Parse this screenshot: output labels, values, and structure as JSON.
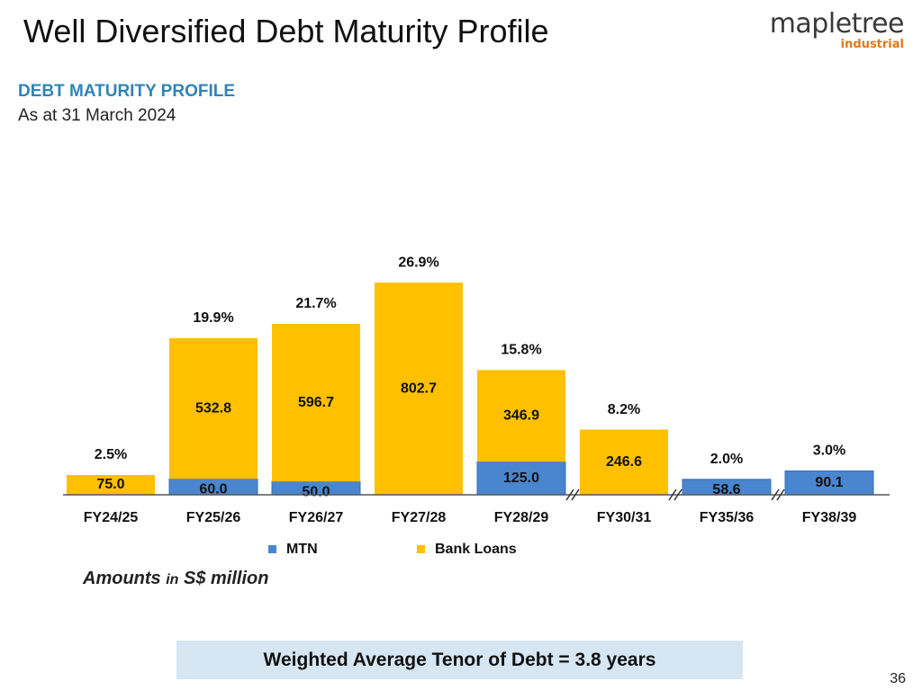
{
  "slide": {
    "title": "Well Diversified Debt Maturity Profile",
    "heading": "DEBT MATURITY PROFILE",
    "subheading": "As at 31 March 2024",
    "amounts_prefix": "Amounts ",
    "amounts_in": "in",
    "amounts_unit": " S$ million",
    "tenor": "Weighted Average Tenor of Debt = 3.8 years",
    "page_number": "36"
  },
  "logo": {
    "main": "mapletree",
    "sub": "industrial"
  },
  "colors": {
    "mtn": "#4a86cf",
    "bank_loans": "#ffc000",
    "heading": "#2f84b8",
    "tenor_box": "#d6e6f3"
  },
  "chart_data": {
    "type": "bar",
    "stacked": true,
    "categories": [
      "FY24/25",
      "FY25/26",
      "FY26/27",
      "FY27/28",
      "FY28/29",
      "FY30/31",
      "FY35/36",
      "FY38/39"
    ],
    "series": [
      {
        "name": "MTN",
        "color": "#4a86cf",
        "values": [
          0,
          60.0,
          50.0,
          0,
          125.0,
          0,
          58.6,
          90.1
        ],
        "labels": [
          "",
          "60.0",
          "50.0",
          "",
          "125.0",
          "",
          "58.6",
          "90.1"
        ]
      },
      {
        "name": "Bank Loans",
        "color": "#ffc000",
        "values": [
          75.0,
          532.8,
          596.7,
          802.7,
          346.9,
          246.6,
          0,
          0
        ],
        "labels": [
          "75.0",
          "532.8",
          "596.7",
          "802.7",
          "346.9",
          "246.6",
          "",
          ""
        ]
      }
    ],
    "percentages": [
      "2.5%",
      "19.9%",
      "21.7%",
      "26.9%",
      "15.8%",
      "8.2%",
      "2.0%",
      "3.0%"
    ],
    "axis_breaks_after": [
      "FY28/29",
      "FY30/31",
      "FY35/36"
    ],
    "legend": [
      "MTN",
      "Bank Loans"
    ],
    "legend_position": "bottom",
    "ylim": [
      0,
      810
    ],
    "y_axis_visible": false,
    "grid": false
  }
}
